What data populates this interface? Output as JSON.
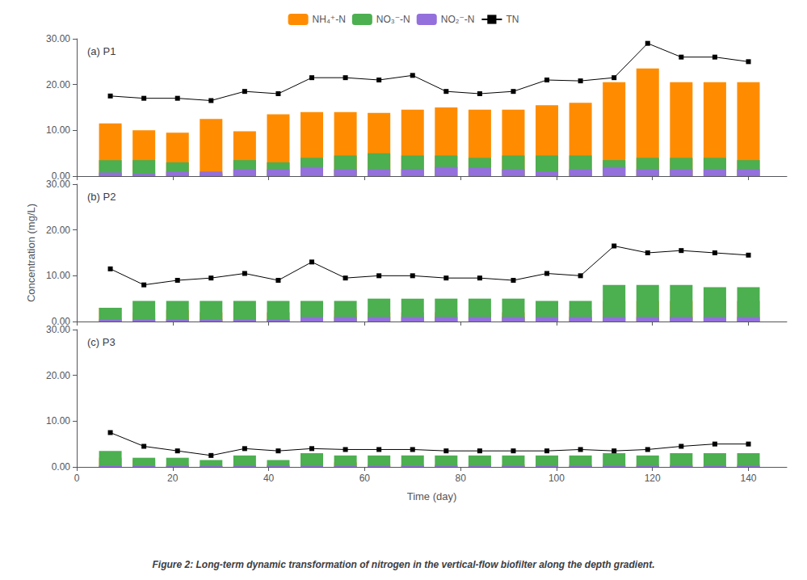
{
  "chart_data": [
    {
      "type": "bar",
      "title": "(a) P1",
      "stacked": true,
      "grid": false,
      "legend": "top",
      "tick_labels": "y",
      "x": [
        7,
        14,
        21,
        28,
        35,
        42,
        49,
        56,
        63,
        70,
        77,
        84,
        91,
        98,
        105,
        112,
        119,
        126,
        133,
        140
      ],
      "xlim": [
        0,
        148
      ],
      "xticks": [
        0,
        20,
        40,
        60,
        80,
        100,
        120,
        140
      ],
      "ylim": [
        0,
        30
      ],
      "yticks": [
        {
          "value": 0,
          "label": "0.00"
        },
        {
          "value": 10,
          "label": "10.00"
        },
        {
          "value": 20,
          "label": "20.00"
        },
        {
          "value": 30,
          "label": "30.00"
        }
      ],
      "series": [
        {
          "name": "NH₄⁺-N",
          "color": "#FF8C00",
          "values": [
            11.5,
            10.0,
            9.5,
            12.5,
            9.8,
            13.5,
            14.0,
            14.0,
            13.8,
            14.5,
            15.0,
            14.5,
            14.5,
            15.5,
            16.0,
            20.5,
            23.5,
            20.5,
            20.5,
            20.5
          ]
        },
        {
          "name": "NO₃⁻-N",
          "color": "#4CAF50",
          "values": [
            3.5,
            3.5,
            3.0,
            0.5,
            3.5,
            3.0,
            4.0,
            4.5,
            5.0,
            4.5,
            4.5,
            4.0,
            4.5,
            4.5,
            4.5,
            3.5,
            4.0,
            4.0,
            4.0,
            3.5
          ]
        },
        {
          "name": "NO₂⁻-N",
          "color": "#9370DB",
          "values": [
            0.8,
            0.5,
            1.0,
            1.0,
            1.5,
            1.5,
            2.0,
            1.5,
            1.5,
            1.5,
            2.0,
            1.8,
            1.5,
            1.0,
            1.5,
            2.0,
            1.5,
            1.5,
            1.5,
            1.5
          ]
        },
        {
          "name": "TN",
          "type": "line",
          "color": "#000000",
          "marker": "square",
          "line_style": "solid",
          "values": [
            17.5,
            17.0,
            17.0,
            16.5,
            18.5,
            18.0,
            21.5,
            21.5,
            21.0,
            22.0,
            18.5,
            18.0,
            18.5,
            21.0,
            20.8,
            21.5,
            29.0,
            26.0,
            26.0,
            25.0
          ]
        }
      ]
    },
    {
      "type": "bar",
      "title": "(b) P2",
      "stacked": true,
      "grid": false,
      "tick_labels": "y",
      "ylabel": "Concentration (mg/L)",
      "x": [
        7,
        14,
        21,
        28,
        35,
        42,
        49,
        56,
        63,
        70,
        77,
        84,
        91,
        98,
        105,
        112,
        119,
        126,
        133,
        140
      ],
      "xlim": [
        0,
        148
      ],
      "xticks": [
        0,
        20,
        40,
        60,
        80,
        100,
        120,
        140
      ],
      "ylim": [
        0,
        30
      ],
      "yticks": [
        {
          "value": 0,
          "label": "0.00"
        },
        {
          "value": 10,
          "label": "10.00"
        },
        {
          "value": 20,
          "label": "20.00"
        },
        {
          "value": 30,
          "label": "30.00"
        }
      ],
      "series": [
        {
          "name": "NH₄⁺-N",
          "color": "#FF8C00",
          "values": [
            3.0,
            2.0,
            2.5,
            2.0,
            2.5,
            2.0,
            2.0,
            2.5,
            2.0,
            2.0,
            2.0,
            2.0,
            2.0,
            2.5,
            2.5,
            4.5,
            4.5,
            4.5,
            5.0,
            4.5
          ]
        },
        {
          "name": "NO₃⁻-N",
          "color": "#4CAF50",
          "values": [
            3.0,
            4.5,
            4.5,
            4.5,
            4.5,
            4.5,
            4.5,
            4.5,
            5.0,
            5.0,
            5.0,
            5.0,
            5.0,
            4.5,
            4.5,
            8.0,
            8.0,
            8.0,
            7.5,
            7.5
          ]
        },
        {
          "name": "NO₂⁻-N",
          "color": "#9370DB",
          "values": [
            0.5,
            0.5,
            0.5,
            0.5,
            0.5,
            0.5,
            1.0,
            1.0,
            1.0,
            1.0,
            1.0,
            1.0,
            1.0,
            1.0,
            1.0,
            1.0,
            1.0,
            1.0,
            1.0,
            1.0
          ]
        },
        {
          "name": "TN",
          "type": "line",
          "color": "#000000",
          "marker": "square",
          "line_style": "solid",
          "values": [
            11.5,
            8.0,
            9.0,
            9.5,
            10.5,
            9.0,
            13.0,
            9.5,
            10.0,
            10.0,
            9.5,
            9.5,
            9.0,
            10.5,
            10.0,
            16.5,
            15.0,
            15.5,
            15.0,
            14.5
          ]
        }
      ]
    },
    {
      "type": "bar",
      "title": "(c) P3",
      "stacked": true,
      "grid": false,
      "xlabel": "Time (day)",
      "annotations": [
        "Figure 2: Long-term dynamic transformation of nitrogen in the vertical-flow biofilter along the depth gradient."
      ],
      "x": [
        7,
        14,
        21,
        28,
        35,
        42,
        49,
        56,
        63,
        70,
        77,
        84,
        91,
        98,
        105,
        112,
        119,
        126,
        133,
        140
      ],
      "xlim": [
        0,
        148
      ],
      "xticks": [
        0,
        20,
        40,
        60,
        80,
        100,
        120,
        140
      ],
      "ylim": [
        0,
        30
      ],
      "yticks": [
        {
          "value": 0,
          "label": "0.00"
        },
        {
          "value": 10,
          "label": "10.00"
        },
        {
          "value": 20,
          "label": "20.00"
        },
        {
          "value": 30,
          "label": "30.00"
        }
      ],
      "series": [
        {
          "name": "NH₄⁺-N",
          "color": "#FF8C00",
          "values": [
            2.0,
            1.5,
            0.5,
            0.2,
            0.5,
            0.5,
            0.5,
            1.0,
            0.5,
            0.5,
            0.5,
            0.5,
            0.5,
            0.5,
            0.5,
            0.5,
            0.5,
            0.5,
            0.5,
            0.5
          ]
        },
        {
          "name": "NO₃⁻-N",
          "color": "#4CAF50",
          "values": [
            3.5,
            2.0,
            2.0,
            1.5,
            2.5,
            1.5,
            3.0,
            2.5,
            2.5,
            2.5,
            2.5,
            2.5,
            2.5,
            2.5,
            2.5,
            3.0,
            2.5,
            3.0,
            3.0,
            3.0
          ]
        },
        {
          "name": "NO₂⁻-N",
          "color": "#9370DB",
          "values": [
            0.3,
            0.3,
            0.2,
            0.2,
            0.2,
            0.2,
            0.2,
            0.2,
            0.2,
            0.2,
            0.2,
            0.2,
            0.2,
            0.2,
            0.2,
            0.2,
            0.2,
            0.2,
            0.2,
            0.2
          ]
        },
        {
          "name": "TN",
          "type": "line",
          "color": "#000000",
          "marker": "square",
          "line_style": "solid",
          "values": [
            7.5,
            4.5,
            3.5,
            2.5,
            4.0,
            3.5,
            4.0,
            3.8,
            3.8,
            3.8,
            3.5,
            3.5,
            3.5,
            3.5,
            3.8,
            3.5,
            3.8,
            4.5,
            5.0,
            5.0
          ]
        }
      ]
    }
  ]
}
